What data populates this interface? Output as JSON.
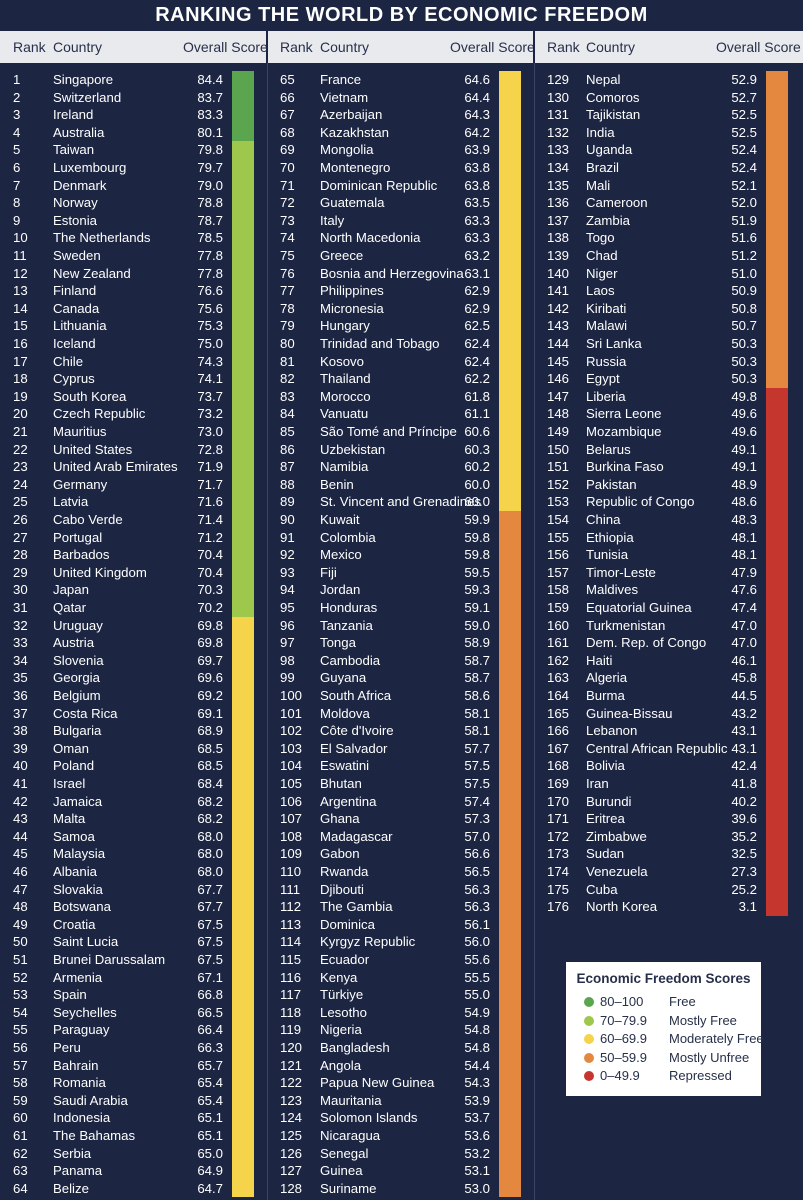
{
  "title": "RANKING THE WORLD BY ECONOMIC FREEDOM",
  "headers": {
    "rank": "Rank",
    "country": "Country",
    "score": "Overall Score"
  },
  "colors": {
    "free": "#5aa54d",
    "mostly_free": "#9dc84b",
    "moderately_free": "#f5d34a",
    "mostly_unfree": "#e5883f",
    "repressed": "#c5372e"
  },
  "rankings": [
    [
      "1",
      "Singapore",
      "84.4"
    ],
    [
      "2",
      "Switzerland",
      "83.7"
    ],
    [
      "3",
      "Ireland",
      "83.3"
    ],
    [
      "4",
      "Australia",
      "80.1"
    ],
    [
      "5",
      "Taiwan",
      "79.8"
    ],
    [
      "6",
      "Luxembourg",
      "79.7"
    ],
    [
      "7",
      "Denmark",
      "79.0"
    ],
    [
      "8",
      "Norway",
      "78.8"
    ],
    [
      "9",
      "Estonia",
      "78.7"
    ],
    [
      "10",
      "The Netherlands",
      "78.5"
    ],
    [
      "11",
      "Sweden",
      "77.8"
    ],
    [
      "12",
      "New Zealand",
      "77.8"
    ],
    [
      "13",
      "Finland",
      "76.6"
    ],
    [
      "14",
      "Canada",
      "75.6"
    ],
    [
      "15",
      "Lithuania",
      "75.3"
    ],
    [
      "16",
      "Iceland",
      "75.0"
    ],
    [
      "17",
      "Chile",
      "74.3"
    ],
    [
      "18",
      "Cyprus",
      "74.1"
    ],
    [
      "19",
      "South Korea",
      "73.7"
    ],
    [
      "20",
      "Czech Republic",
      "73.2"
    ],
    [
      "21",
      "Mauritius",
      "73.0"
    ],
    [
      "22",
      "United States",
      "72.8"
    ],
    [
      "23",
      "United Arab Emirates",
      "71.9"
    ],
    [
      "24",
      "Germany",
      "71.7"
    ],
    [
      "25",
      "Latvia",
      "71.6"
    ],
    [
      "26",
      "Cabo Verde",
      "71.4"
    ],
    [
      "27",
      "Portugal",
      "71.2"
    ],
    [
      "28",
      "Barbados",
      "70.4"
    ],
    [
      "29",
      "United Kingdom",
      "70.4"
    ],
    [
      "30",
      "Japan",
      "70.3"
    ],
    [
      "31",
      "Qatar",
      "70.2"
    ],
    [
      "32",
      "Uruguay",
      "69.8"
    ],
    [
      "33",
      "Austria",
      "69.8"
    ],
    [
      "34",
      "Slovenia",
      "69.7"
    ],
    [
      "35",
      "Georgia",
      "69.6"
    ],
    [
      "36",
      "Belgium",
      "69.2"
    ],
    [
      "37",
      "Costa Rica",
      "69.1"
    ],
    [
      "38",
      "Bulgaria",
      "68.9"
    ],
    [
      "39",
      "Oman",
      "68.5"
    ],
    [
      "40",
      "Poland",
      "68.5"
    ],
    [
      "41",
      "Israel",
      "68.4"
    ],
    [
      "42",
      "Jamaica",
      "68.2"
    ],
    [
      "43",
      "Malta",
      "68.2"
    ],
    [
      "44",
      "Samoa",
      "68.0"
    ],
    [
      "45",
      "Malaysia",
      "68.0"
    ],
    [
      "46",
      "Albania",
      "68.0"
    ],
    [
      "47",
      "Slovakia",
      "67.7"
    ],
    [
      "48",
      "Botswana",
      "67.7"
    ],
    [
      "49",
      "Croatia",
      "67.5"
    ],
    [
      "50",
      "Saint Lucia",
      "67.5"
    ],
    [
      "51",
      "Brunei Darussalam",
      "67.5"
    ],
    [
      "52",
      "Armenia",
      "67.1"
    ],
    [
      "53",
      "Spain",
      "66.8"
    ],
    [
      "54",
      "Seychelles",
      "66.5"
    ],
    [
      "55",
      "Paraguay",
      "66.4"
    ],
    [
      "56",
      "Peru",
      "66.3"
    ],
    [
      "57",
      "Bahrain",
      "65.7"
    ],
    [
      "58",
      "Romania",
      "65.4"
    ],
    [
      "59",
      "Saudi Arabia",
      "65.4"
    ],
    [
      "60",
      "Indonesia",
      "65.1"
    ],
    [
      "61",
      "The Bahamas",
      "65.1"
    ],
    [
      "62",
      "Serbia",
      "65.0"
    ],
    [
      "63",
      "Panama",
      "64.9"
    ],
    [
      "64",
      "Belize",
      "64.7"
    ],
    [
      "65",
      "France",
      "64.6"
    ],
    [
      "66",
      "Vietnam",
      "64.4"
    ],
    [
      "67",
      "Azerbaijan",
      "64.3"
    ],
    [
      "68",
      "Kazakhstan",
      "64.2"
    ],
    [
      "69",
      "Mongolia",
      "63.9"
    ],
    [
      "70",
      "Montenegro",
      "63.8"
    ],
    [
      "71",
      "Dominican Republic",
      "63.8"
    ],
    [
      "72",
      "Guatemala",
      "63.5"
    ],
    [
      "73",
      "Italy",
      "63.3"
    ],
    [
      "74",
      "North Macedonia",
      "63.3"
    ],
    [
      "75",
      "Greece",
      "63.2"
    ],
    [
      "76",
      "Bosnia and Herzegovina",
      "63.1"
    ],
    [
      "77",
      "Philippines",
      "62.9"
    ],
    [
      "78",
      "Micronesia",
      "62.9"
    ],
    [
      "79",
      "Hungary",
      "62.5"
    ],
    [
      "80",
      "Trinidad and Tobago",
      "62.4"
    ],
    [
      "81",
      "Kosovo",
      "62.4"
    ],
    [
      "82",
      "Thailand",
      "62.2"
    ],
    [
      "83",
      "Morocco",
      "61.8"
    ],
    [
      "84",
      "Vanuatu",
      "61.1"
    ],
    [
      "85",
      "São Tomé and Príncipe",
      "60.6"
    ],
    [
      "86",
      "Uzbekistan",
      "60.3"
    ],
    [
      "87",
      "Namibia",
      "60.2"
    ],
    [
      "88",
      "Benin",
      "60.0"
    ],
    [
      "89",
      "St. Vincent and Grenadines",
      "60.0"
    ],
    [
      "90",
      "Kuwait",
      "59.9"
    ],
    [
      "91",
      "Colombia",
      "59.8"
    ],
    [
      "92",
      "Mexico",
      "59.8"
    ],
    [
      "93",
      "Fiji",
      "59.5"
    ],
    [
      "94",
      "Jordan",
      "59.3"
    ],
    [
      "95",
      "Honduras",
      "59.1"
    ],
    [
      "96",
      "Tanzania",
      "59.0"
    ],
    [
      "97",
      "Tonga",
      "58.9"
    ],
    [
      "98",
      "Cambodia",
      "58.7"
    ],
    [
      "99",
      "Guyana",
      "58.7"
    ],
    [
      "100",
      "South Africa",
      "58.6"
    ],
    [
      "101",
      "Moldova",
      "58.1"
    ],
    [
      "102",
      "Côte d'Ivoire",
      "58.1"
    ],
    [
      "103",
      "El Salvador",
      "57.7"
    ],
    [
      "104",
      "Eswatini",
      "57.5"
    ],
    [
      "105",
      "Bhutan",
      "57.5"
    ],
    [
      "106",
      "Argentina",
      "57.4"
    ],
    [
      "107",
      "Ghana",
      "57.3"
    ],
    [
      "108",
      "Madagascar",
      "57.0"
    ],
    [
      "109",
      "Gabon",
      "56.6"
    ],
    [
      "110",
      "Rwanda",
      "56.5"
    ],
    [
      "111",
      "Djibouti",
      "56.3"
    ],
    [
      "112",
      "The Gambia",
      "56.3"
    ],
    [
      "113",
      "Dominica",
      "56.1"
    ],
    [
      "114",
      "Kyrgyz Republic",
      "56.0"
    ],
    [
      "115",
      "Ecuador",
      "55.6"
    ],
    [
      "116",
      "Kenya",
      "55.5"
    ],
    [
      "117",
      "Türkiye",
      "55.0"
    ],
    [
      "118",
      "Lesotho",
      "54.9"
    ],
    [
      "119",
      "Nigeria",
      "54.8"
    ],
    [
      "120",
      "Bangladesh",
      "54.8"
    ],
    [
      "121",
      "Angola",
      "54.4"
    ],
    [
      "122",
      "Papua New Guinea",
      "54.3"
    ],
    [
      "123",
      "Mauritania",
      "53.9"
    ],
    [
      "124",
      "Solomon Islands",
      "53.7"
    ],
    [
      "125",
      "Nicaragua",
      "53.6"
    ],
    [
      "126",
      "Senegal",
      "53.2"
    ],
    [
      "127",
      "Guinea",
      "53.1"
    ],
    [
      "128",
      "Suriname",
      "53.0"
    ],
    [
      "129",
      "Nepal",
      "52.9"
    ],
    [
      "130",
      "Comoros",
      "52.7"
    ],
    [
      "131",
      "Tajikistan",
      "52.5"
    ],
    [
      "132",
      "India",
      "52.5"
    ],
    [
      "133",
      "Uganda",
      "52.4"
    ],
    [
      "134",
      "Brazil",
      "52.4"
    ],
    [
      "135",
      "Mali",
      "52.1"
    ],
    [
      "136",
      "Cameroon",
      "52.0"
    ],
    [
      "137",
      "Zambia",
      "51.9"
    ],
    [
      "138",
      "Togo",
      "51.6"
    ],
    [
      "139",
      "Chad",
      "51.2"
    ],
    [
      "140",
      "Niger",
      "51.0"
    ],
    [
      "141",
      "Laos",
      "50.9"
    ],
    [
      "142",
      "Kiribati",
      "50.8"
    ],
    [
      "143",
      "Malawi",
      "50.7"
    ],
    [
      "144",
      "Sri Lanka",
      "50.3"
    ],
    [
      "145",
      "Russia",
      "50.3"
    ],
    [
      "146",
      "Egypt",
      "50.3"
    ],
    [
      "147",
      "Liberia",
      "49.8"
    ],
    [
      "148",
      "Sierra Leone",
      "49.6"
    ],
    [
      "149",
      "Mozambique",
      "49.6"
    ],
    [
      "150",
      "Belarus",
      "49.1"
    ],
    [
      "151",
      "Burkina Faso",
      "49.1"
    ],
    [
      "152",
      "Pakistan",
      "48.9"
    ],
    [
      "153",
      "Republic of Congo",
      "48.6"
    ],
    [
      "154",
      "China",
      "48.3"
    ],
    [
      "155",
      "Ethiopia",
      "48.1"
    ],
    [
      "156",
      "Tunisia",
      "48.1"
    ],
    [
      "157",
      "Timor-Leste",
      "47.9"
    ],
    [
      "158",
      "Maldives",
      "47.6"
    ],
    [
      "159",
      "Equatorial Guinea",
      "47.4"
    ],
    [
      "160",
      "Turkmenistan",
      "47.0"
    ],
    [
      "161",
      "Dem. Rep. of Congo",
      "47.0"
    ],
    [
      "162",
      "Haiti",
      "46.1"
    ],
    [
      "163",
      "Algeria",
      "45.8"
    ],
    [
      "164",
      "Burma",
      "44.5"
    ],
    [
      "165",
      "Guinea-Bissau",
      "43.2"
    ],
    [
      "166",
      "Lebanon",
      "43.1"
    ],
    [
      "167",
      "Central African Republic",
      "43.1"
    ],
    [
      "168",
      "Bolivia",
      "42.4"
    ],
    [
      "169",
      "Iran",
      "41.8"
    ],
    [
      "170",
      "Burundi",
      "40.2"
    ],
    [
      "171",
      "Eritrea",
      "39.6"
    ],
    [
      "172",
      "Zimbabwe",
      "35.2"
    ],
    [
      "173",
      "Sudan",
      "32.5"
    ],
    [
      "174",
      "Venezuela",
      "27.3"
    ],
    [
      "175",
      "Cuba",
      "25.2"
    ],
    [
      "176",
      "North Korea",
      "3.1"
    ]
  ],
  "legend": {
    "title": "Economic Freedom Scores",
    "items": [
      {
        "range": "80–100",
        "label": "Free",
        "color": "#5aa54d"
      },
      {
        "range": "70–79.9",
        "label": "Mostly Free",
        "color": "#9dc84b"
      },
      {
        "range": "60–69.9",
        "label": "Moderately Free",
        "color": "#f5d34a"
      },
      {
        "range": "50–59.9",
        "label": "Mostly Unfree",
        "color": "#e5883f"
      },
      {
        "range": "0–49.9",
        "label": "Repressed",
        "color": "#c5372e"
      }
    ]
  }
}
